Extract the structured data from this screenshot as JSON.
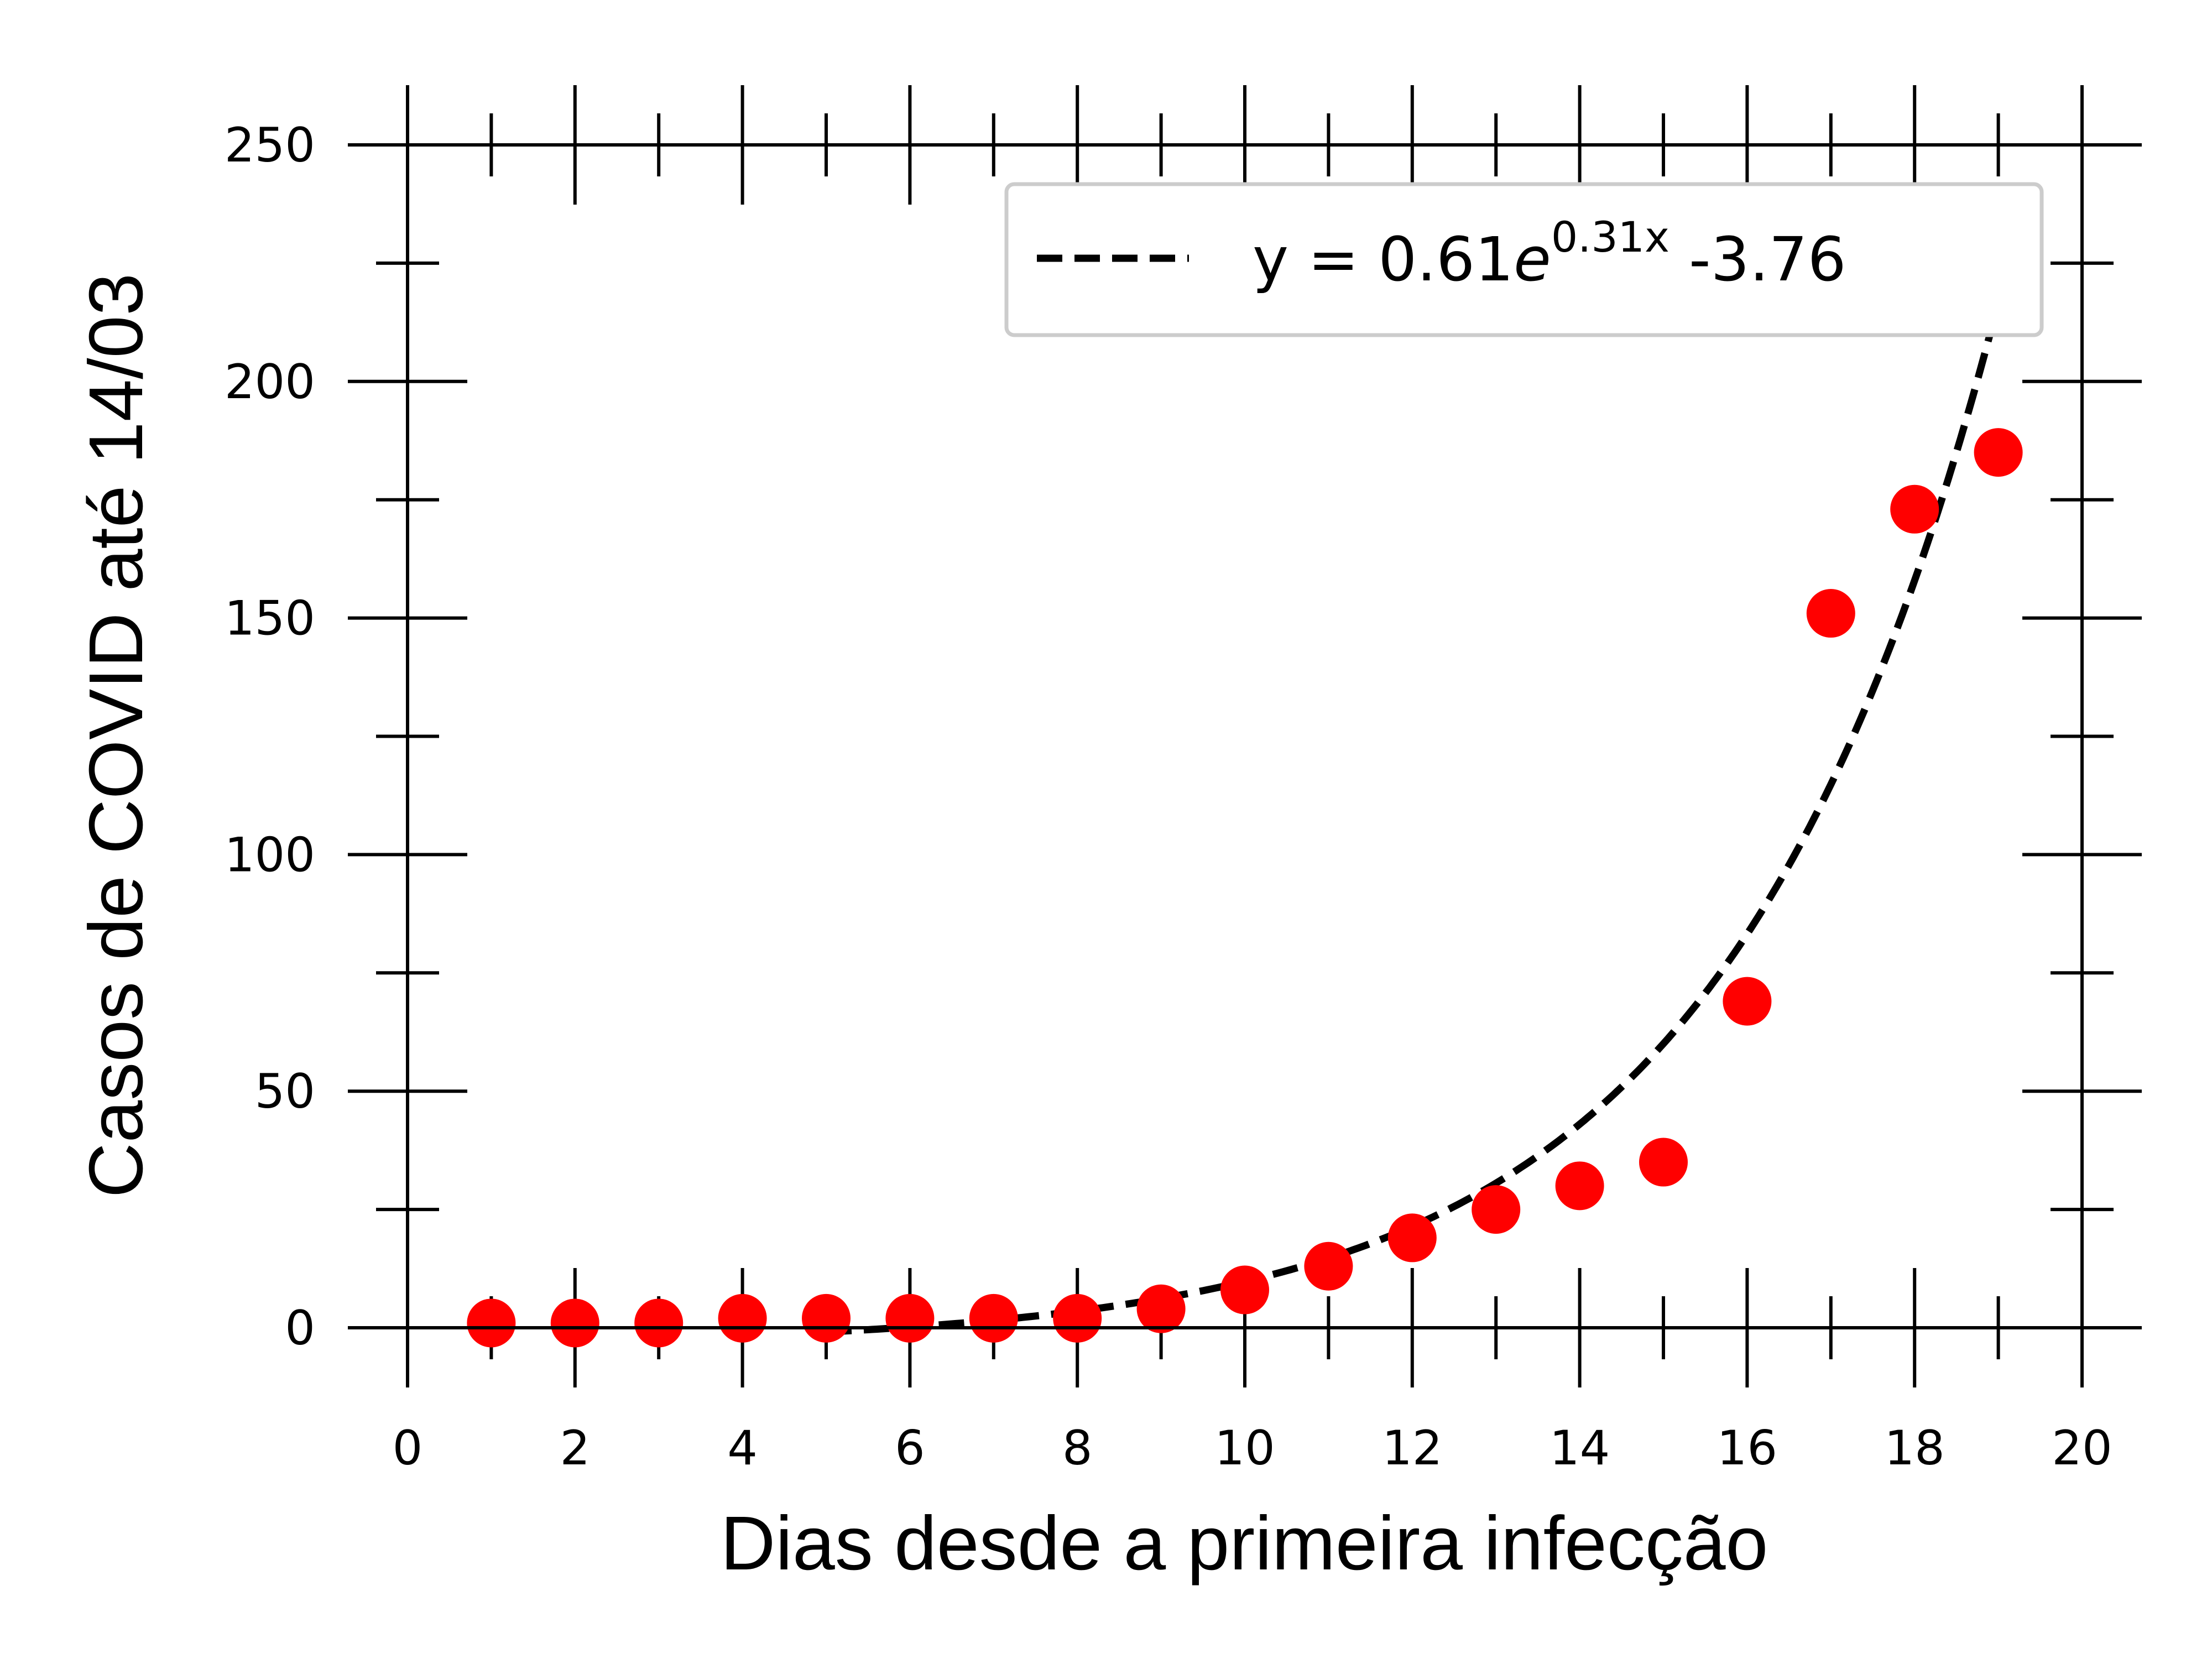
{
  "chart_data": {
    "type": "scatter",
    "xlabel": "Dias desde a primeira infecção",
    "ylabel": "Casos de COVID até 14/03",
    "xlim": [
      0,
      20
    ],
    "ylim": [
      0,
      250
    ],
    "xticks": [
      0,
      2,
      4,
      6,
      8,
      10,
      12,
      14,
      16,
      18,
      20
    ],
    "yticks": [
      0,
      50,
      100,
      150,
      200,
      250
    ],
    "grid": false,
    "legend_position": "top-right",
    "series": [
      {
        "kind": "points",
        "color": "#ff0000",
        "x": [
          1,
          2,
          3,
          4,
          5,
          6,
          7,
          8,
          9,
          10,
          11,
          12,
          13,
          14,
          15,
          16,
          17,
          18,
          19
        ],
        "y": [
          1,
          1,
          1,
          2,
          2,
          2,
          2,
          2,
          4,
          8,
          13,
          19,
          25,
          30,
          35,
          69,
          151,
          173,
          185
        ]
      },
      {
        "kind": "fit-line",
        "style": "dashed",
        "color": "#000000",
        "legend": {
          "prefix": "y = 0.61",
          "base": "e",
          "exponent": "0.31x",
          "suffix": " -3.76"
        },
        "a": 0.61,
        "b": 0.31,
        "c": -3.76,
        "x_from": 5,
        "x_to": 19
      }
    ]
  }
}
